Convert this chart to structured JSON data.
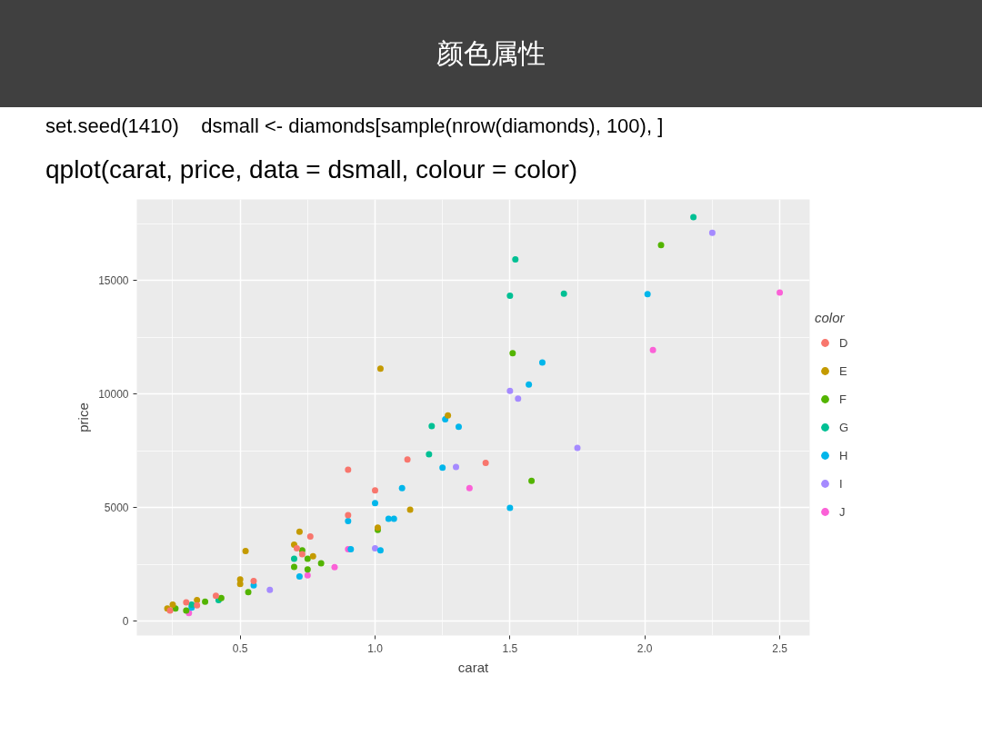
{
  "chart_data": {
    "type": "scatter",
    "title": "颜色属性",
    "annotations": [
      "set.seed(1410)    dsmall <- diamonds[sample(nrow(diamonds), 100), ]",
      "qplot(carat, price, data = dsmall, colour = color)"
    ],
    "xlabel": "carat",
    "ylabel": "price",
    "legend_title": "color",
    "xlim": [
      0.117,
      2.611
    ],
    "ylim": [
      -626,
      18560
    ],
    "xticks": [
      0.5,
      {
        "value": 1,
        "label": "1.0"
      },
      1.5,
      {
        "value": 2,
        "label": "2.0"
      },
      2.5
    ],
    "yticks": [
      0,
      5000,
      10000,
      15000
    ],
    "grid": true,
    "legend": "right",
    "marker": "circle",
    "series": [
      {
        "name": "D",
        "color": "#f8766d",
        "x": [
          0.9,
          0.9,
          1.0,
          1.12,
          1.41,
          0.76,
          0.73,
          0.71,
          0.55,
          0.41,
          0.3,
          0.34,
          0.24
        ],
        "values": [
          6670,
          4670,
          5760,
          7120,
          6970,
          3730,
          2950,
          3210,
          1770,
          1120,
          830,
          700,
          470
        ]
      },
      {
        "name": "E",
        "color": "#c49a00",
        "x": [
          1.02,
          1.27,
          1.13,
          1.01,
          0.72,
          0.7,
          0.77,
          0.52,
          0.5,
          0.5,
          0.34,
          0.25,
          0.23
        ],
        "values": [
          11120,
          9060,
          4910,
          4120,
          3940,
          3370,
          2860,
          3090,
          1840,
          1640,
          930,
          730,
          560
        ]
      },
      {
        "name": "F",
        "color": "#53b400",
        "x": [
          2.06,
          1.51,
          1.58,
          1.01,
          0.73,
          0.75,
          0.8,
          0.7,
          0.75,
          0.53,
          0.43,
          0.37,
          0.3,
          0.26
        ],
        "values": [
          16550,
          11790,
          6180,
          4020,
          3120,
          2750,
          2550,
          2390,
          2280,
          1280,
          1020,
          860,
          470,
          560
        ]
      },
      {
        "name": "G",
        "color": "#00c094",
        "x": [
          2.18,
          1.52,
          1.5,
          1.7,
          1.21,
          1.2,
          0.7,
          0.42,
          0.32
        ],
        "values": [
          17780,
          15920,
          14320,
          14410,
          8590,
          7350,
          2750,
          930,
          730
        ]
      },
      {
        "name": "H",
        "color": "#00b6eb",
        "x": [
          2.01,
          1.62,
          1.57,
          1.26,
          1.31,
          1.25,
          1.1,
          1.0,
          1.05,
          1.07,
          0.9,
          0.91,
          1.02,
          1.5,
          0.72,
          0.55,
          0.32
        ],
        "values": [
          14390,
          11390,
          10420,
          8890,
          8560,
          6760,
          5860,
          5200,
          4510,
          4510,
          4410,
          3170,
          3120,
          4990,
          1970,
          1580,
          600
        ]
      },
      {
        "name": "I",
        "color": "#a58aff",
        "x": [
          2.25,
          1.5,
          1.53,
          1.75,
          1.3,
          1.0,
          0.61
        ],
        "values": [
          17090,
          10140,
          9800,
          7630,
          6790,
          3210,
          1380
        ]
      },
      {
        "name": "J",
        "color": "#fb61d7",
        "x": [
          2.5,
          2.03,
          1.35,
          0.85,
          0.9,
          0.75,
          0.31
        ],
        "values": [
          14460,
          11930,
          5860,
          2380,
          3170,
          2020,
          360
        ]
      }
    ]
  }
}
